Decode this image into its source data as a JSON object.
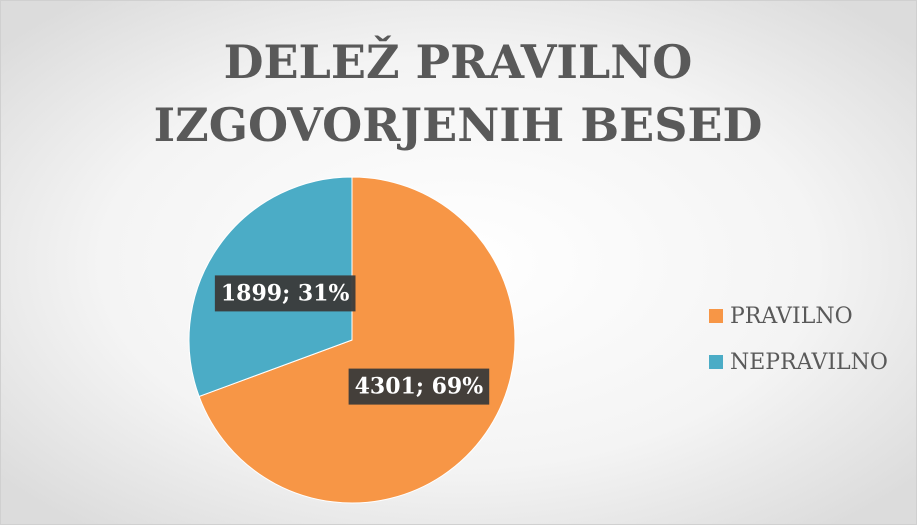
{
  "chart_data": {
    "type": "pie",
    "title": [
      "DELEŽ PRAVILNO",
      "IZGOVORJENIH BESED"
    ],
    "categories": [
      "PRAVILNO",
      "NEPRAVILNO"
    ],
    "values": [
      4301,
      1899
    ],
    "value_labels": [
      "4301; 69%",
      "1899; 31%"
    ],
    "colors": [
      "#F79646",
      "#4BACC6"
    ],
    "legend": "right"
  }
}
